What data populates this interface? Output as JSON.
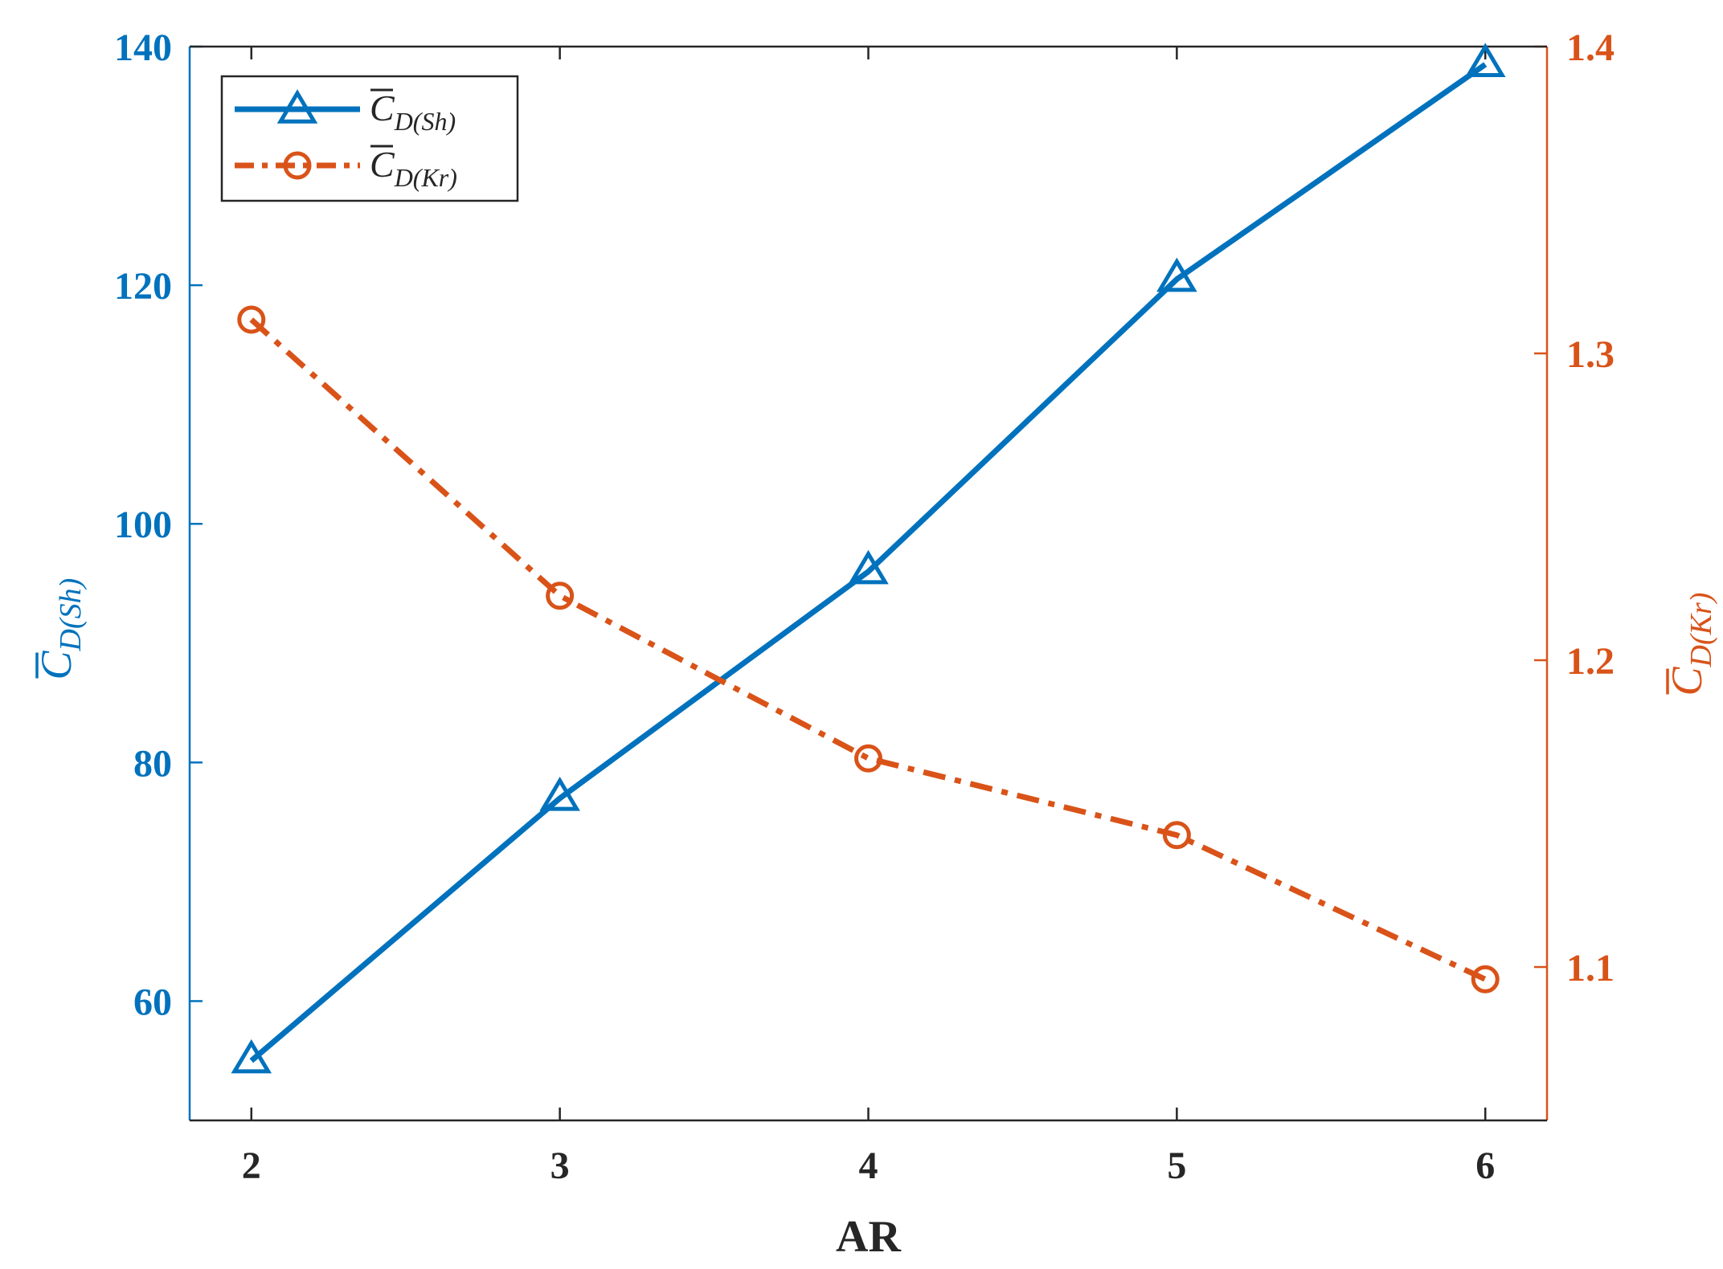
{
  "chart_data": {
    "type": "line",
    "x": [
      2,
      3,
      4,
      5,
      6
    ],
    "xlabel": "AR",
    "xlim": [
      1.8,
      6.2
    ],
    "x_ticks": [
      "2",
      "3",
      "4",
      "5",
      "6"
    ],
    "series": [
      {
        "name_main": "C",
        "name_sub": "D(Sh)",
        "axis": "left",
        "values": [
          55.0,
          77.0,
          96.0,
          120.5,
          138.5
        ],
        "color": "#0072BD",
        "line_style": "solid",
        "marker": "triangle"
      },
      {
        "name_main": "C",
        "name_sub": "D(Kr)",
        "axis": "right",
        "values": [
          1.311,
          1.221,
          1.168,
          1.143,
          1.096
        ],
        "color": "#D95319",
        "line_style": "dash-dot",
        "marker": "circle"
      }
    ],
    "y_left": {
      "label_main": "C",
      "label_sub": "D(Sh)",
      "ylim": [
        50,
        140
      ],
      "ticks": [
        "60",
        "80",
        "100",
        "120",
        "140"
      ],
      "color": "#0072BD"
    },
    "y_right": {
      "label_main": "C",
      "label_sub": "D(Kr)",
      "ylim": [
        1.05,
        1.4
      ],
      "ticks": [
        "1.1",
        "1.2",
        "1.3",
        "1.4"
      ],
      "color": "#D95319"
    },
    "legend_position": "top-left",
    "grid": false
  }
}
